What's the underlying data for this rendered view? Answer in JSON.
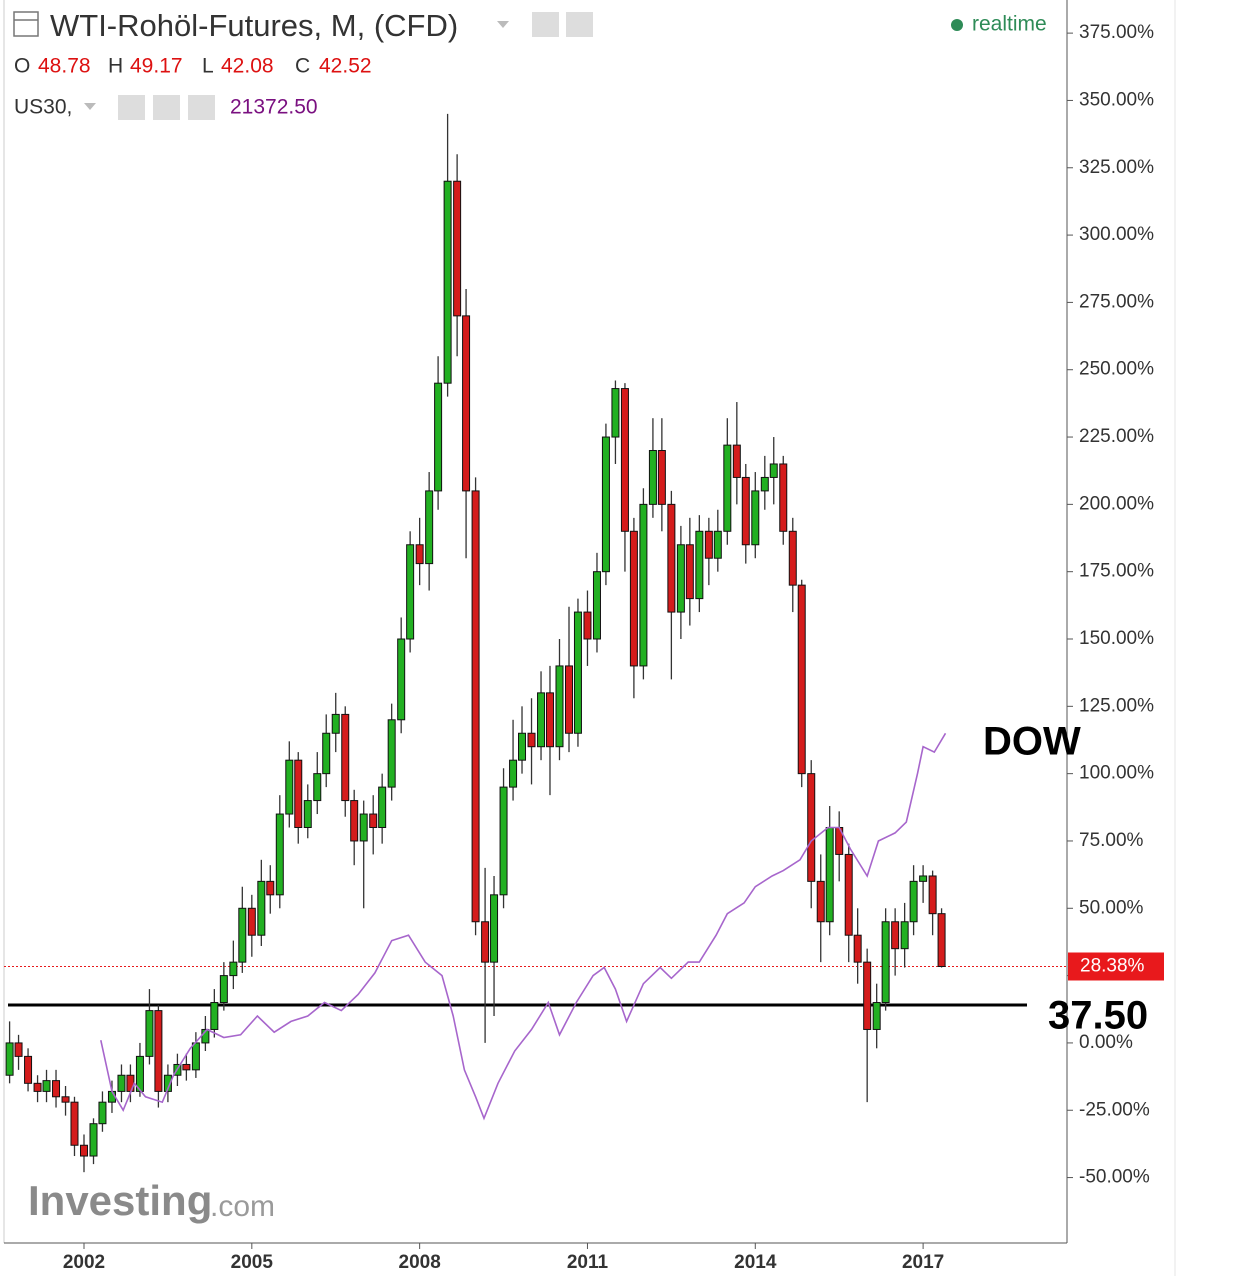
{
  "chart_data": {
    "type": "candlestick",
    "title": "WTI-Rohöl-Futures, M, (CFD)",
    "status": "realtime",
    "quote": [
      {
        "key": "O",
        "value": "48.78"
      },
      {
        "key": "H",
        "value": "49.17"
      },
      {
        "key": "L",
        "value": "42.08"
      },
      {
        "key": "C",
        "value": "42.52"
      }
    ],
    "compare_quote": "21372.50",
    "watermark": {
      "brand": "Investing",
      "suffix": ".com"
    },
    "xlim": [
      2000.57,
      2019.59
    ],
    "xticks": [
      2002,
      2005,
      2008,
      2011,
      2014,
      2017
    ],
    "ylim": [
      -74.3,
      387.3
    ],
    "yticks": [
      {
        "value": -50,
        "label": "-50.00%"
      },
      {
        "value": -25,
        "label": "-25.00%"
      },
      {
        "value": 0,
        "label": "0.00%"
      },
      {
        "value": 25,
        "label": "25.00%"
      },
      {
        "value": 50,
        "label": "50.00%"
      },
      {
        "value": 75,
        "label": "75.00%"
      },
      {
        "value": 100,
        "label": "100.00%"
      },
      {
        "value": 125,
        "label": "125.00%"
      },
      {
        "value": 150,
        "label": "150.00%"
      },
      {
        "value": 175,
        "label": "175.00%"
      },
      {
        "value": 200,
        "label": "200.00%"
      },
      {
        "value": 225,
        "label": "225.00%"
      },
      {
        "value": 250,
        "label": "250.00%"
      },
      {
        "value": 275,
        "label": "275.00%"
      },
      {
        "value": 300,
        "label": "300.00%"
      },
      {
        "value": 325,
        "label": "325.00%"
      },
      {
        "value": 350,
        "label": "350.00%"
      },
      {
        "value": 375,
        "label": "375.00%"
      }
    ],
    "grid": false,
    "x": [
      2000.67,
      2000.83,
      2001.0,
      2001.17,
      2001.33,
      2001.5,
      2001.67,
      2001.83,
      2002.0,
      2002.17,
      2002.33,
      2002.5,
      2002.67,
      2002.83,
      2003.0,
      2003.17,
      2003.33,
      2003.5,
      2003.67,
      2003.83,
      2004.0,
      2004.17,
      2004.33,
      2004.5,
      2004.67,
      2004.83,
      2005.0,
      2005.17,
      2005.33,
      2005.5,
      2005.67,
      2005.83,
      2006.0,
      2006.17,
      2006.33,
      2006.5,
      2006.67,
      2006.83,
      2007.0,
      2007.17,
      2007.33,
      2007.5,
      2007.67,
      2007.83,
      2008.0,
      2008.17,
      2008.33,
      2008.5,
      2008.67,
      2008.83,
      2009.0,
      2009.17,
      2009.33,
      2009.5,
      2009.67,
      2009.83,
      2010.0,
      2010.17,
      2010.33,
      2010.5,
      2010.67,
      2010.83,
      2011.0,
      2011.17,
      2011.33,
      2011.5,
      2011.67,
      2011.83,
      2012.0,
      2012.17,
      2012.33,
      2012.5,
      2012.67,
      2012.83,
      2013.0,
      2013.17,
      2013.33,
      2013.5,
      2013.67,
      2013.83,
      2014.0,
      2014.17,
      2014.33,
      2014.5,
      2014.67,
      2014.83,
      2015.0,
      2015.17,
      2015.33,
      2015.5,
      2015.67,
      2015.83,
      2016.0,
      2016.17,
      2016.33,
      2016.5,
      2016.67,
      2016.83,
      2017.0,
      2017.17,
      2017.33
    ],
    "series": [
      {
        "name": "WTI-Rohöl-Futures",
        "up_color": "#22b022",
        "down_color": "#d41c1c",
        "open": [
          -12,
          0,
          -5,
          -15,
          -18,
          -14,
          -20,
          -22,
          -38,
          -42,
          -30,
          -22,
          -18,
          -12,
          -18,
          -5,
          12,
          -18,
          -12,
          -8,
          -10,
          0,
          5,
          15,
          25,
          30,
          50,
          40,
          60,
          55,
          85,
          105,
          80,
          90,
          100,
          115,
          122,
          90,
          75,
          85,
          80,
          95,
          120,
          150,
          185,
          178,
          205,
          245,
          320,
          270,
          205,
          45,
          30,
          55,
          95,
          105,
          115,
          110,
          130,
          110,
          140,
          115,
          160,
          150,
          175,
          225,
          243,
          190,
          140,
          200,
          220,
          200,
          160,
          185,
          165,
          190,
          180,
          190,
          222,
          210,
          185,
          205,
          210,
          215,
          190,
          170,
          100,
          60,
          45,
          80,
          70,
          40,
          30,
          5,
          15,
          45,
          35,
          45,
          60,
          62,
          48
        ],
        "high": [
          8,
          3,
          -2,
          -12,
          -10,
          -10,
          -16,
          -20,
          -34,
          -28,
          -18,
          -14,
          -8,
          -8,
          0,
          20,
          14,
          -8,
          -4,
          -4,
          4,
          10,
          20,
          30,
          38,
          58,
          55,
          68,
          66,
          92,
          112,
          108,
          96,
          108,
          122,
          130,
          125,
          94,
          90,
          92,
          100,
          126,
          158,
          190,
          195,
          212,
          255,
          345,
          330,
          280,
          210,
          65,
          62,
          102,
          120,
          125,
          128,
          138,
          140,
          150,
          162,
          165,
          168,
          182,
          230,
          246,
          245,
          195,
          206,
          232,
          232,
          205,
          192,
          195,
          196,
          195,
          198,
          232,
          238,
          215,
          212,
          218,
          225,
          218,
          195,
          172,
          105,
          70,
          88,
          86,
          74,
          50,
          35,
          22,
          50,
          50,
          52,
          66,
          66,
          64,
          50
        ],
        "low": [
          -15,
          -10,
          -18,
          -22,
          -22,
          -24,
          -27,
          -42,
          -48,
          -45,
          -33,
          -26,
          -22,
          -22,
          -20,
          -8,
          -24,
          -22,
          -16,
          -14,
          -13,
          -3,
          2,
          12,
          20,
          26,
          32,
          36,
          48,
          50,
          80,
          74,
          76,
          85,
          95,
          108,
          84,
          66,
          50,
          70,
          74,
          90,
          115,
          145,
          170,
          168,
          198,
          240,
          255,
          180,
          40,
          0,
          10,
          50,
          90,
          100,
          96,
          105,
          92,
          105,
          108,
          110,
          140,
          145,
          170,
          215,
          175,
          128,
          135,
          195,
          190,
          135,
          150,
          155,
          160,
          170,
          175,
          185,
          200,
          178,
          180,
          198,
          200,
          185,
          160,
          95,
          50,
          30,
          40,
          60,
          30,
          22,
          -22,
          -2,
          12,
          25,
          28,
          40,
          52,
          40,
          28
        ],
        "close": [
          0,
          -5,
          -15,
          -18,
          -14,
          -20,
          -22,
          -38,
          -42,
          -30,
          -22,
          -18,
          -12,
          -18,
          -5,
          12,
          -18,
          -12,
          -8,
          -10,
          0,
          5,
          15,
          25,
          30,
          50,
          40,
          60,
          55,
          85,
          105,
          80,
          90,
          100,
          115,
          122,
          90,
          75,
          85,
          80,
          95,
          120,
          150,
          185,
          178,
          205,
          245,
          320,
          270,
          205,
          45,
          30,
          55,
          95,
          105,
          115,
          110,
          130,
          110,
          140,
          115,
          160,
          150,
          175,
          225,
          243,
          190,
          140,
          200,
          220,
          200,
          160,
          185,
          165,
          190,
          180,
          190,
          222,
          210,
          185,
          205,
          210,
          215,
          190,
          170,
          100,
          60,
          45,
          80,
          70,
          40,
          30,
          5,
          15,
          45,
          35,
          45,
          60,
          62,
          48,
          28.38
        ]
      },
      {
        "name": "US30,",
        "kind": "line",
        "color": "#a766cc",
        "x": [
          2002.3,
          2002.5,
          2002.7,
          2002.9,
          2003.1,
          2003.4,
          2003.6,
          2003.9,
          2004.2,
          2004.5,
          2004.8,
          2005.1,
          2005.4,
          2005.7,
          2006.0,
          2006.3,
          2006.6,
          2006.9,
          2007.2,
          2007.5,
          2007.8,
          2008.1,
          2008.4,
          2008.6,
          2008.8,
          2009.0,
          2009.15,
          2009.4,
          2009.7,
          2010.0,
          2010.3,
          2010.5,
          2010.8,
          2011.1,
          2011.3,
          2011.5,
          2011.7,
          2012.0,
          2012.3,
          2012.5,
          2012.8,
          2013.0,
          2013.3,
          2013.5,
          2013.8,
          2014.0,
          2014.3,
          2014.5,
          2014.8,
          2015.0,
          2015.3,
          2015.5,
          2015.7,
          2016.0,
          2016.2,
          2016.5,
          2016.7,
          2016.9,
          2017.0,
          2017.2,
          2017.4
        ],
        "values": [
          1,
          -18,
          -25,
          -15,
          -20,
          -22,
          -12,
          -2,
          5,
          2,
          3,
          10,
          4,
          8,
          10,
          15,
          12,
          18,
          26,
          38,
          40,
          30,
          25,
          10,
          -10,
          -20,
          -28,
          -15,
          -3,
          5,
          15,
          3,
          15,
          25,
          28,
          20,
          8,
          22,
          28,
          24,
          30,
          30,
          40,
          48,
          52,
          58,
          62,
          64,
          68,
          75,
          80,
          80,
          72,
          62,
          75,
          78,
          82,
          100,
          110,
          108,
          115
        ]
      }
    ],
    "last_value": {
      "value": 28.38,
      "label": "28.38%",
      "color": "#e8191c"
    },
    "support_line": {
      "value": 14.1,
      "label": "37.50"
    },
    "annotation": "DOW"
  }
}
